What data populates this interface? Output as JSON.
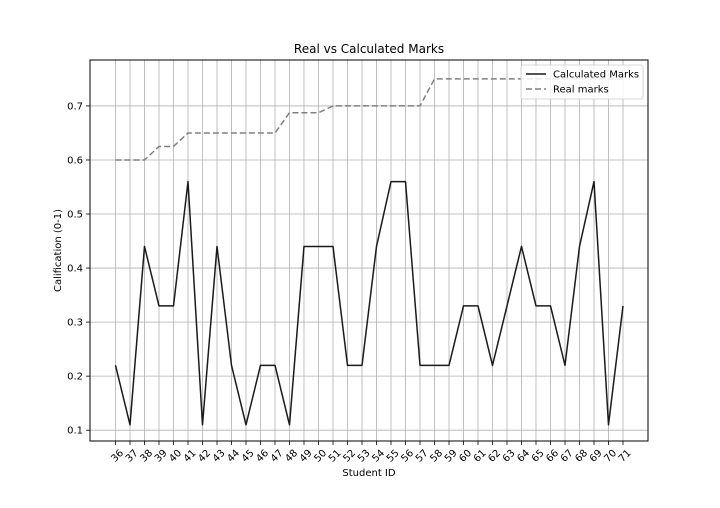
{
  "chart_data": {
    "type": "line",
    "title": "Real vs Calculated Marks",
    "xlabel": "Student ID",
    "ylabel": "Calification (0-1)",
    "x": [
      36,
      37,
      38,
      39,
      40,
      41,
      42,
      43,
      44,
      45,
      46,
      47,
      48,
      49,
      50,
      51,
      52,
      53,
      54,
      55,
      56,
      57,
      58,
      59,
      60,
      61,
      62,
      63,
      64,
      65,
      66,
      67,
      68,
      69,
      70,
      71
    ],
    "ylim": [
      0.08,
      0.785
    ],
    "yticks": [
      0.1,
      0.2,
      0.3,
      0.4,
      0.5,
      0.6,
      0.7
    ],
    "ytick_labels": [
      "0.1",
      "0.2",
      "0.3",
      "0.4",
      "0.5",
      "0.6",
      "0.7"
    ],
    "grid": true,
    "legend_position": "top-right",
    "series": [
      {
        "name": "Calculated Marks",
        "style": "solid",
        "color": "#1a1a1a",
        "values": [
          0.22,
          0.11,
          0.44,
          0.33,
          0.33,
          0.56,
          0.11,
          0.44,
          0.22,
          0.11,
          0.22,
          0.22,
          0.11,
          0.44,
          0.44,
          0.44,
          0.22,
          0.22,
          0.44,
          0.56,
          0.56,
          0.22,
          0.22,
          0.22,
          0.33,
          0.33,
          0.22,
          0.33,
          0.44,
          0.33,
          0.33,
          0.22,
          0.44,
          0.56,
          0.11,
          0.33
        ]
      },
      {
        "name": "Real marks",
        "style": "dashed",
        "color": "#808080",
        "values": [
          0.6,
          0.6,
          0.6,
          0.625,
          0.625,
          0.65,
          0.65,
          0.65,
          0.65,
          0.65,
          0.65,
          0.65,
          0.6875,
          0.6875,
          0.6875,
          0.7,
          0.7,
          0.7,
          0.7,
          0.7,
          0.7,
          0.7,
          0.75,
          0.75,
          0.75,
          0.75,
          0.75,
          0.75,
          0.75,
          0.75,
          0.75,
          0.75,
          0.75,
          0.75,
          0.75,
          0.75
        ]
      }
    ]
  }
}
